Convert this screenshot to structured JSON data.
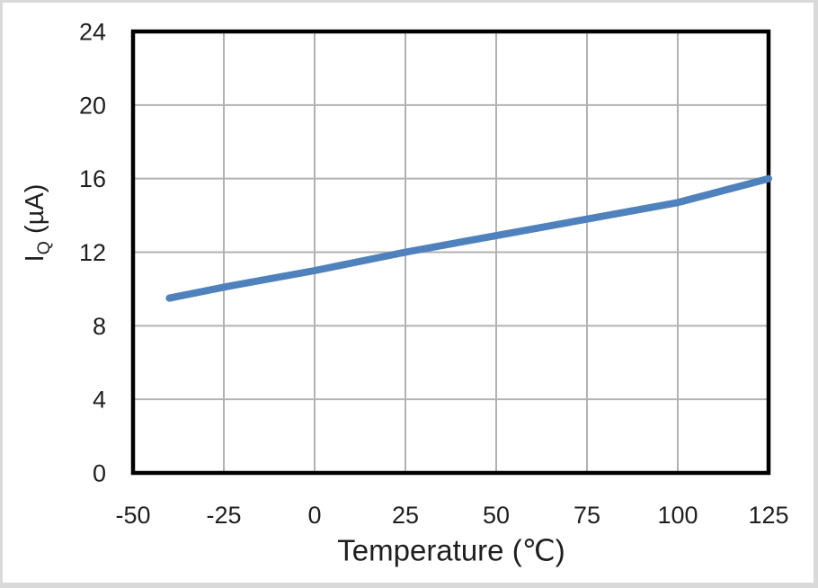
{
  "window": {
    "background": "#ffffff",
    "outer_border_color": "#d9d9d9"
  },
  "chart_data": {
    "type": "line",
    "title": "",
    "xlabel": "Temperature (℃)",
    "ylabel_base": "I",
    "ylabel_sub": "Q",
    "ylabel_unit": " (µA)",
    "xlim": [
      -50,
      125
    ],
    "ylim": [
      0,
      24
    ],
    "x_ticks": [
      -50,
      -25,
      0,
      25,
      50,
      75,
      100,
      125
    ],
    "y_ticks": [
      0,
      4,
      8,
      12,
      16,
      20,
      24
    ],
    "grid": true,
    "legend": "none",
    "gridline_color": "#b2b2b2",
    "axis_frame_color": "#000000",
    "tick_label_color": "#1f1f1f",
    "series": [
      {
        "name": "IQ",
        "color": "#4f81bd",
        "line_width": 8,
        "points": [
          [
            -40,
            9.5
          ],
          [
            -25,
            10.1
          ],
          [
            0,
            11.0
          ],
          [
            25,
            12.0
          ],
          [
            50,
            12.9
          ],
          [
            75,
            13.8
          ],
          [
            100,
            14.7
          ],
          [
            125,
            16.0
          ]
        ]
      }
    ]
  }
}
